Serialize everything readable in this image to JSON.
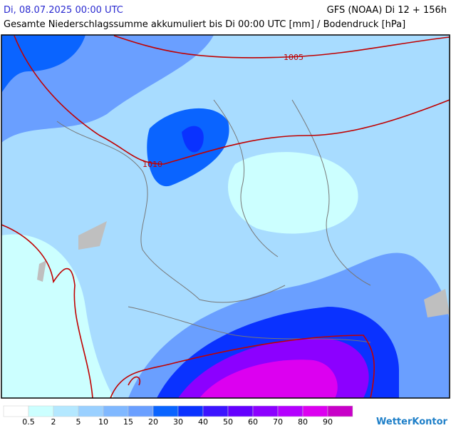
{
  "header": {
    "left": "Di, 08.07.2025 00:00 UTC",
    "right": "GFS (NOAA) Di 12 + 156h",
    "subtitle": "Gesamte Niederschlagssumme akkumuliert bis Di 00:00 UTC [mm] / Bodendruck [hPa]"
  },
  "map": {
    "isobars": [
      {
        "label": "1005"
      },
      {
        "label": "1010"
      }
    ]
  },
  "legend": {
    "labels": [
      "0.5",
      "2",
      "5",
      "10",
      "15",
      "20",
      "30",
      "40",
      "50",
      "60",
      "70",
      "80",
      "90"
    ],
    "colors": [
      "#ffffff",
      "#ccffff",
      "#b4e8ff",
      "#9ad0ff",
      "#80b8ff",
      "#6a9fff",
      "#0a64ff",
      "#0a32ff",
      "#3c14ff",
      "#6400ff",
      "#8c00ff",
      "#b400ff",
      "#dc00f0",
      "#c800c8"
    ]
  },
  "brand": "WetterKontor"
}
